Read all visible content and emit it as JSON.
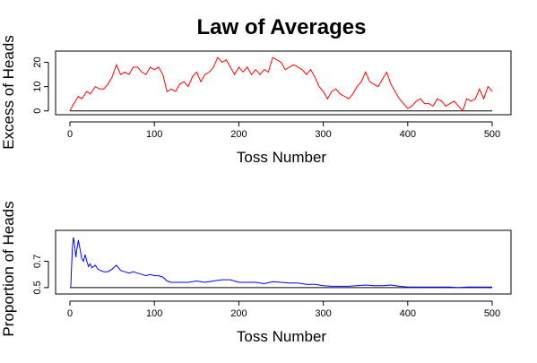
{
  "title": "Law of Averages",
  "chart_data": [
    {
      "type": "line",
      "title": "Law of Averages",
      "xlabel": "Toss Number",
      "ylabel": "Excess of Heads",
      "xlim": [
        0,
        500
      ],
      "ylim": [
        0,
        22
      ],
      "xticks": [
        0,
        100,
        200,
        300,
        400,
        500
      ],
      "yticks": [
        0,
        10,
        20
      ],
      "reference_line": 0,
      "grid": false,
      "series": [
        {
          "color": "#ff0000",
          "x": [
            0,
            3,
            10,
            14,
            20,
            24,
            30,
            35,
            40,
            45,
            50,
            55,
            60,
            65,
            70,
            75,
            80,
            85,
            90,
            95,
            100,
            105,
            110,
            115,
            120,
            125,
            130,
            135,
            140,
            145,
            150,
            155,
            160,
            165,
            170,
            175,
            180,
            185,
            190,
            195,
            200,
            205,
            210,
            215,
            220,
            225,
            230,
            235,
            240,
            245,
            250,
            255,
            260,
            265,
            270,
            275,
            280,
            285,
            290,
            295,
            300,
            305,
            310,
            315,
            320,
            325,
            330,
            335,
            340,
            345,
            350,
            355,
            360,
            365,
            370,
            375,
            380,
            385,
            390,
            395,
            400,
            405,
            410,
            415,
            420,
            425,
            430,
            435,
            440,
            445,
            450,
            455,
            460,
            465,
            470,
            475,
            480,
            485,
            490,
            495,
            500
          ],
          "y": [
            0,
            2,
            6,
            5,
            8,
            7,
            10,
            9,
            9,
            11,
            14,
            19,
            15,
            16,
            15,
            18,
            18,
            16,
            15,
            18,
            17,
            18,
            15,
            8,
            9,
            8,
            11,
            12,
            10,
            14,
            16,
            12,
            15,
            16,
            18,
            22,
            20,
            21,
            18,
            15,
            18,
            16,
            18,
            15,
            17,
            15,
            17,
            16,
            22,
            21,
            20,
            17,
            18,
            19,
            18,
            17,
            15,
            17,
            14,
            10,
            8,
            5,
            8,
            9,
            7,
            6,
            5,
            7,
            10,
            12,
            16,
            12,
            11,
            10,
            13,
            16,
            11,
            8,
            5,
            3,
            1,
            2,
            4,
            5,
            3,
            3,
            2,
            5,
            4,
            2,
            3,
            4,
            2,
            0,
            5,
            4,
            5,
            9,
            5,
            10,
            8
          ]
        }
      ]
    },
    {
      "type": "line",
      "xlabel": "Toss Number",
      "ylabel": "Proportion of Heads",
      "xlim": [
        0,
        500
      ],
      "ylim": [
        0.5,
        0.9
      ],
      "xticks": [
        0,
        100,
        200,
        300,
        400,
        500
      ],
      "yticks": [
        0.5,
        0.7
      ],
      "reference_line": 0.5,
      "grid": false,
      "series": [
        {
          "color": "#0000ff",
          "x": [
            1,
            2,
            3,
            4,
            5,
            6,
            7,
            8,
            9,
            10,
            12,
            14,
            16,
            18,
            20,
            22,
            24,
            26,
            28,
            30,
            33,
            36,
            40,
            45,
            50,
            55,
            60,
            65,
            70,
            75,
            80,
            85,
            90,
            95,
            100,
            105,
            110,
            115,
            120,
            130,
            140,
            150,
            160,
            170,
            180,
            190,
            200,
            210,
            220,
            230,
            240,
            250,
            260,
            270,
            280,
            290,
            300,
            310,
            320,
            330,
            340,
            350,
            360,
            370,
            380,
            390,
            400,
            410,
            420,
            430,
            440,
            450,
            460,
            470,
            480,
            490,
            500
          ],
          "y": [
            0.5,
            0.67,
            0.8,
            0.88,
            0.85,
            0.79,
            0.73,
            0.78,
            0.82,
            0.86,
            0.79,
            0.72,
            0.7,
            0.75,
            0.7,
            0.66,
            0.68,
            0.65,
            0.66,
            0.67,
            0.64,
            0.63,
            0.62,
            0.62,
            0.64,
            0.67,
            0.63,
            0.62,
            0.61,
            0.62,
            0.61,
            0.6,
            0.59,
            0.6,
            0.59,
            0.59,
            0.58,
            0.55,
            0.54,
            0.54,
            0.54,
            0.55,
            0.54,
            0.55,
            0.56,
            0.56,
            0.54,
            0.54,
            0.54,
            0.53,
            0.545,
            0.54,
            0.535,
            0.535,
            0.525,
            0.525,
            0.515,
            0.51,
            0.51,
            0.51,
            0.515,
            0.52,
            0.515,
            0.515,
            0.52,
            0.51,
            0.505,
            0.505,
            0.505,
            0.505,
            0.505,
            0.505,
            0.5,
            0.505,
            0.505,
            0.505,
            0.505
          ]
        }
      ]
    }
  ]
}
